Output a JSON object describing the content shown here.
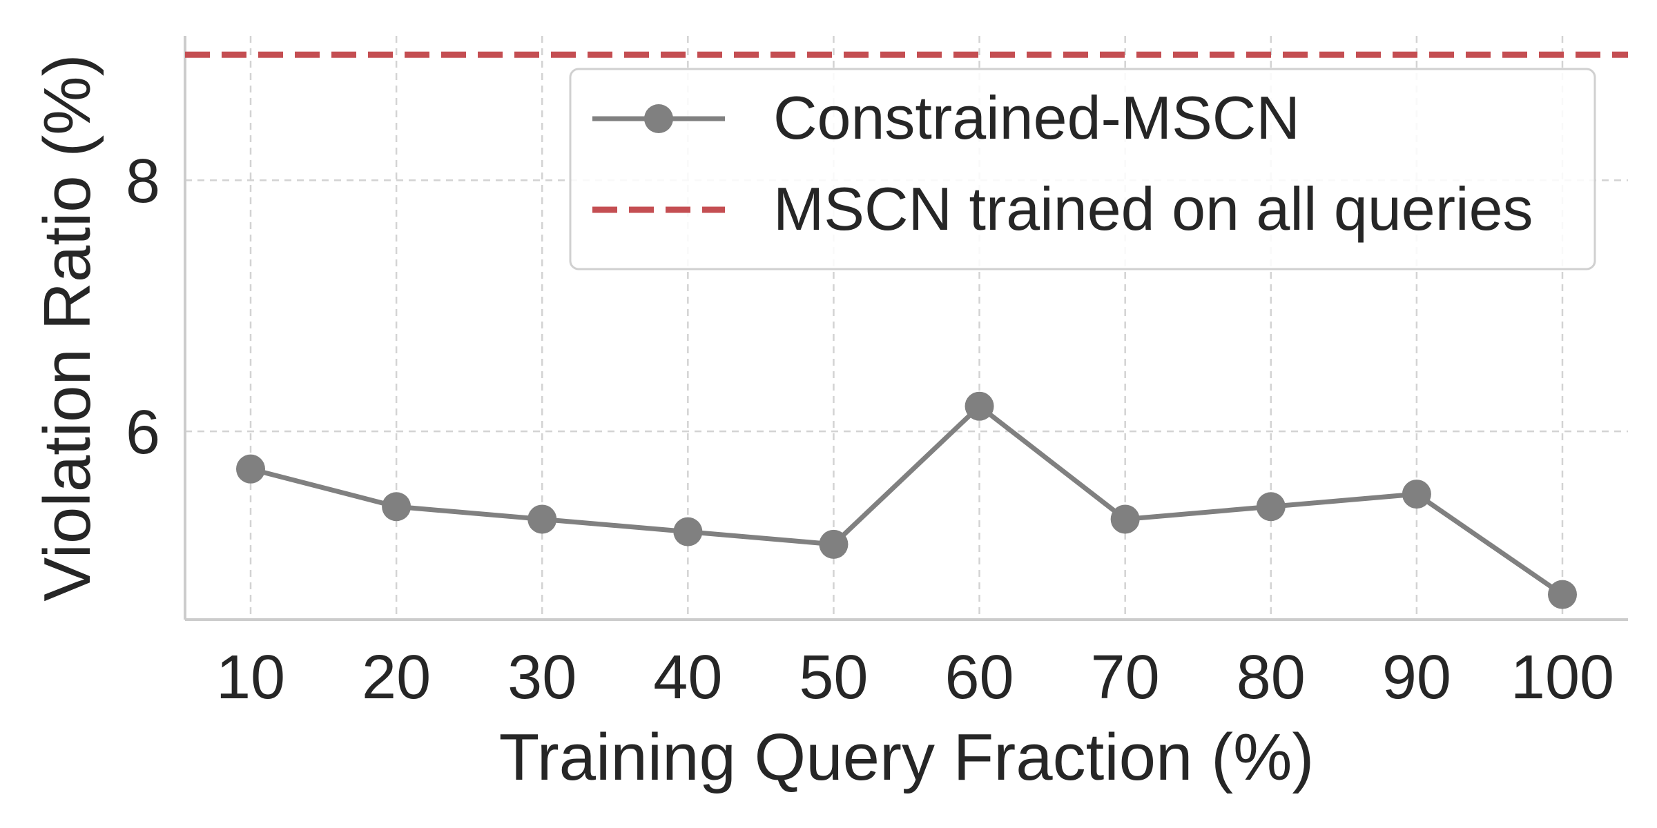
{
  "chart_data": {
    "type": "line",
    "title": "",
    "xlabel": "Training Query Fraction (%)",
    "ylabel": "Violation Ratio (%)",
    "x": [
      10,
      20,
      30,
      40,
      50,
      60,
      70,
      80,
      90,
      100
    ],
    "xticks": [
      "10",
      "20",
      "30",
      "40",
      "50",
      "60",
      "70",
      "80",
      "90",
      "100"
    ],
    "yticks": [
      "6",
      "8"
    ],
    "ytick_values": [
      6,
      8
    ],
    "xlim": [
      5.5,
      104.5
    ],
    "ylim": [
      4.5,
      9.15
    ],
    "grid": true,
    "legend_position": "top-right",
    "series": [
      {
        "name": "Constrained-MSCN",
        "values": [
          5.7,
          5.4,
          5.3,
          5.2,
          5.1,
          6.2,
          5.3,
          5.4,
          5.5,
          4.7
        ],
        "color": "#808080",
        "style": "solid-with-markers"
      }
    ],
    "reference_lines": [
      {
        "name": "MSCN trained on all queries",
        "y": 9.0,
        "color": "#c44e52",
        "style": "dashed"
      }
    ]
  }
}
